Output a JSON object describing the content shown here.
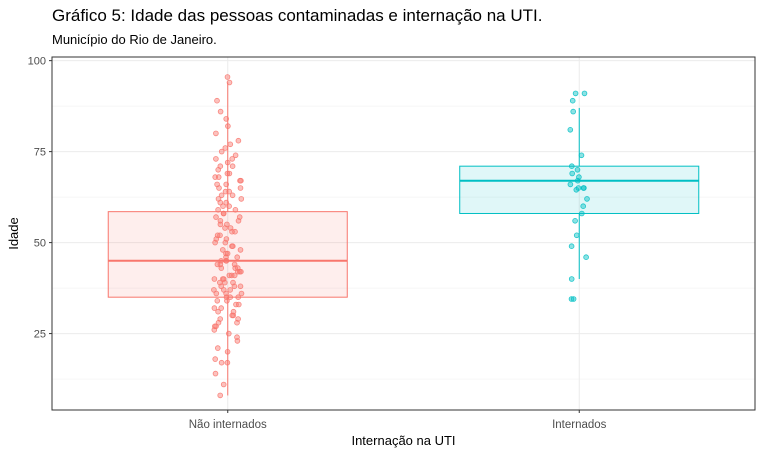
{
  "chart_data": {
    "type": "boxplot",
    "title": "Gráfico 5: Idade das pessoas contaminadas e internação na UTI.",
    "subtitle": "Município do Rio de Janeiro.",
    "xlabel": "Internação na UTI",
    "ylabel": "Idade",
    "ylim": [
      4,
      101
    ],
    "yticks": [
      25,
      50,
      75,
      100
    ],
    "grid": true,
    "categories": [
      "Não internados",
      "Internados"
    ],
    "colors": [
      "#F8766D",
      "#00BFC4"
    ],
    "boxes": [
      {
        "category": "Não internados",
        "min": 8,
        "q1": 35,
        "median": 45,
        "q3": 58.5,
        "max": 94
      },
      {
        "category": "Internados",
        "min": 40,
        "q1": 58,
        "median": 67,
        "q3": 71,
        "max": 87
      }
    ],
    "points": [
      [
        95.5,
        94,
        89,
        86,
        84,
        82,
        80,
        78,
        77,
        76,
        75,
        74,
        73,
        73,
        72,
        71,
        71,
        70,
        69,
        69,
        68,
        68,
        67,
        67,
        66,
        66,
        65,
        65,
        64,
        64,
        63,
        63,
        62,
        62,
        61,
        61,
        60,
        60,
        59,
        59,
        58,
        58,
        57,
        57,
        56,
        56,
        55,
        55,
        54,
        54,
        53,
        53,
        52,
        52,
        51,
        51,
        50,
        50,
        49,
        49,
        48,
        48,
        47,
        47,
        46,
        46,
        45,
        45,
        45,
        44,
        44,
        44,
        43,
        43,
        43,
        42,
        42,
        42,
        41,
        41,
        41,
        40,
        40,
        40,
        39,
        39,
        39,
        38,
        38,
        38,
        37,
        37,
        37,
        36,
        36,
        36,
        35,
        35,
        35,
        34,
        34,
        33,
        33,
        32,
        32,
        31,
        31,
        30,
        30,
        29,
        29,
        28,
        28,
        27,
        27,
        26,
        25,
        24,
        23,
        21,
        20,
        18,
        17,
        17,
        14,
        11,
        8
      ],
      [
        91,
        91,
        89,
        86,
        81,
        74,
        71,
        70,
        69,
        68,
        67,
        66,
        65,
        65,
        65,
        64.5,
        62,
        60,
        58,
        56,
        52,
        49,
        46,
        40,
        34.5,
        34.5
      ]
    ]
  }
}
